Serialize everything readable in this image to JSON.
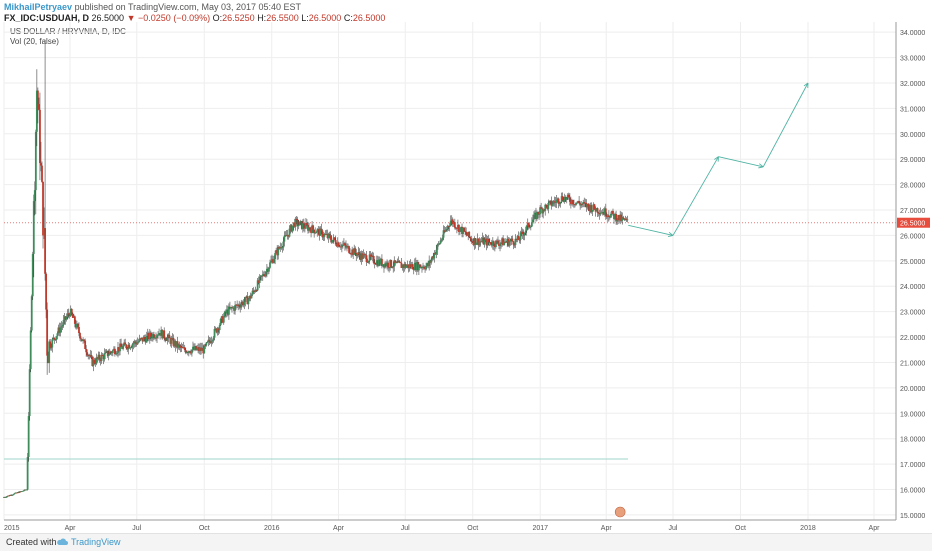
{
  "header": {
    "author": "MikhailPetryaev",
    "published": "published on TradingView.com, May 03, 2017 05:40 EST",
    "symbol": "FX_IDC:USDUAH, D",
    "last": "26.5000",
    "change_arrow": "▼",
    "change": "−0.0250 (−0.09%)",
    "o_label": "O:",
    "o": "26.5250",
    "h_label": "H:",
    "h": "26.5500",
    "l_label": "L:",
    "l": "26.5000",
    "c_label": "C:",
    "c": "26.5000"
  },
  "legend": {
    "title": "US DOLLAR / HRYVNIA, D, IDC",
    "volume": "Vol (20, false)"
  },
  "footer": {
    "created": "Created with",
    "brand": "TradingView"
  },
  "colors": {
    "up": "#3d8c5a",
    "down": "#c0392b",
    "arrow": "#4db3a2",
    "price_line": "#e67a7a",
    "last_badge": "#e74c3c"
  },
  "chart_data": {
    "type": "line",
    "style": "candlestick",
    "x_axis": {
      "ticks": [
        "2015",
        "Apr",
        "Jul",
        "Oct",
        "2016",
        "Apr",
        "Jul",
        "Oct",
        "2017",
        "Apr",
        "Jul",
        "Oct",
        "2018",
        "Apr"
      ],
      "range": [
        "2015-01",
        "2018-05"
      ]
    },
    "y_axis": {
      "ticks": [
        "15.0000",
        "16.0000",
        "17.0000",
        "18.0000",
        "19.0000",
        "20.0000",
        "21.0000",
        "22.0000",
        "23.0000",
        "24.0000",
        "25.0000",
        "26.0000",
        "27.0000",
        "28.0000",
        "29.0000",
        "30.0000",
        "31.0000",
        "32.0000",
        "33.0000",
        "34.0000"
      ],
      "range": [
        14.8,
        34.4
      ],
      "last_price_label": "26.5000"
    },
    "grid": true,
    "series": [
      {
        "x": [
          "2015-01",
          "2015-02-01",
          "2015-02-15",
          "2015-02-25",
          "2015-03",
          "2015-04",
          "2015-05",
          "2015-06",
          "2015-07",
          "2015-08",
          "2015-09",
          "2015-10",
          "2015-11",
          "2015-12",
          "2016-01",
          "2016-02",
          "2016-03",
          "2016-04",
          "2016-05",
          "2016-06",
          "2016-07",
          "2016-08",
          "2016-09",
          "2016-10",
          "2016-11",
          "2016-12",
          "2017-01",
          "2017-02",
          "2017-03",
          "2017-04",
          "2017-05"
        ],
        "y": [
          15.7,
          16.0,
          32.0,
          25.5,
          21.5,
          23.0,
          21.0,
          21.5,
          21.8,
          22.2,
          21.5,
          21.5,
          23.0,
          23.5,
          25.0,
          26.5,
          26.2,
          25.7,
          25.2,
          24.9,
          24.8,
          24.8,
          26.6,
          25.8,
          25.7,
          25.8,
          27.0,
          27.5,
          27.2,
          26.9,
          26.5
        ]
      }
    ],
    "projection": {
      "x": [
        "2017-05",
        "2017-07",
        "2017-09",
        "2017-11",
        "2018-01"
      ],
      "y": [
        26.4,
        26.0,
        29.1,
        28.7,
        32.0
      ]
    },
    "horizontal_levels": [
      26.5,
      17.2
    ]
  }
}
